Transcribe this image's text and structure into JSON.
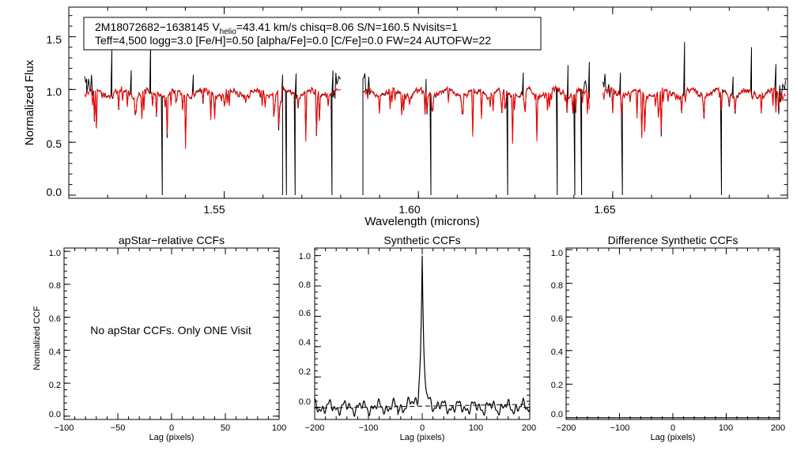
{
  "figure": {
    "info_box": {
      "line1_star": "2M18072682−1638145",
      "line1_v": "V",
      "line1_v_sub": "helio",
      "line1_rest": "=43.41 km/s  chisq=8.06  S/N=160.5  Nvisits=1",
      "line2": "Teff=4,500 logg=3.0 [Fe/H]=0.50 [alpha/Fe]=0.0 [C/Fe]=0.0 FW=24 AUTOFW=22"
    },
    "no_ccf_message": "No apStar CCFs.  Only ONE Visit"
  },
  "chart_data": [
    {
      "type": "line",
      "title": "",
      "xlabel": "Wavelength (microns)",
      "ylabel": "Normalized Flux",
      "xlim": [
        1.51,
        1.695
      ],
      "ylim": [
        -0.03,
        1.78
      ],
      "xticks": [
        1.55,
        1.6,
        1.65
      ],
      "xtick_labels": [
        "1.55",
        "1.60",
        "1.65"
      ],
      "yticks": [
        0.0,
        0.5,
        1.0,
        1.5
      ],
      "ytick_labels": [
        "0.0",
        "0.5",
        "1.0",
        "1.5"
      ],
      "chips": [
        [
          1.5141,
          1.58
        ],
        [
          1.5857,
          1.644
        ],
        [
          1.6475,
          1.6945
        ]
      ],
      "series": [
        {
          "name": "observed spectrum",
          "color": "#000000"
        },
        {
          "name": "synthetic model",
          "color": "#ff0000"
        }
      ],
      "spikes_up": [
        [
          1.5145,
          1.1
        ],
        [
          1.521,
          1.38
        ],
        [
          1.526,
          1.18
        ],
        [
          1.531,
          1.44
        ],
        [
          1.542,
          1.14
        ],
        [
          1.565,
          1.14
        ],
        [
          1.5685,
          1.15
        ],
        [
          1.578,
          1.18
        ],
        [
          1.602,
          1.1
        ],
        [
          1.627,
          1.16
        ],
        [
          1.6385,
          1.23
        ],
        [
          1.644,
          1.26
        ],
        [
          1.652,
          1.16
        ],
        [
          1.6684,
          1.45
        ],
        [
          1.681,
          1.12
        ],
        [
          1.6858,
          1.4
        ],
        [
          1.692,
          1.24
        ]
      ],
      "dips_zero": [
        1.534,
        1.565,
        1.566,
        1.5682,
        1.5778,
        1.5857,
        1.6033,
        1.623,
        1.6357,
        1.6403,
        1.642,
        1.6526,
        1.678
      ]
    },
    {
      "type": "line",
      "title": "apStar−relative CCFs",
      "xlabel": "Lag (pixels)",
      "ylabel": "Normalized CCF",
      "xlim": [
        -100,
        100
      ],
      "ylim": [
        -0.02,
        1.02
      ],
      "xticks": [
        -100,
        -50,
        0,
        50,
        100
      ],
      "xtick_labels": [
        "−100",
        "−50",
        "0",
        "50",
        "100"
      ],
      "yticks": [
        0.0,
        0.2,
        0.4,
        0.6,
        0.8,
        1.0
      ],
      "ytick_labels": [
        "0.0",
        "0.2",
        "0.4",
        "0.6",
        "0.8",
        "1.0"
      ],
      "series": []
    },
    {
      "type": "line",
      "title": "Synthetic CCFs",
      "xlabel": "Lag (pixels)",
      "ylabel": "",
      "xlim": [
        -200,
        200
      ],
      "ylim": [
        -0.08,
        1.05
      ],
      "xticks": [
        -200,
        -100,
        0,
        100,
        200
      ],
      "xtick_labels": [
        "−200",
        "−100",
        "0",
        "100",
        "200"
      ],
      "yticks": [
        0.0,
        0.2,
        0.4,
        0.6,
        0.8,
        1.0
      ],
      "ytick_labels": [
        "0.0",
        "0.2",
        "0.4",
        "0.6",
        "0.8",
        "1.0"
      ],
      "series": [
        {
          "name": "CCF",
          "style": "solid",
          "peak_lag": 0,
          "peak_value": 1.0
        },
        {
          "name": "fit baseline",
          "style": "dashed",
          "values_at": [
            [
              -200,
              -0.005
            ],
            [
              200,
              0.02
            ]
          ]
        }
      ]
    },
    {
      "type": "line",
      "title": "Difference Synthetic CCFs",
      "xlabel": "Lag (pixels)",
      "ylabel": "",
      "xlim": [
        -200,
        200
      ],
      "ylim": [
        -0.01,
        1.01
      ],
      "xticks": [
        -200,
        -100,
        0,
        100,
        200
      ],
      "xtick_labels": [
        "−200",
        "−100",
        "0",
        "100",
        "200"
      ],
      "yticks": [
        0.0,
        0.2,
        0.4,
        0.6,
        0.8,
        1.0
      ],
      "ytick_labels": [
        "0.0",
        "0.2",
        "0.4",
        "0.6",
        "0.8",
        "1.0"
      ],
      "series": [
        {
          "name": "difference",
          "values_at": [
            [
              -200,
              0.0
            ],
            [
              200,
              0.0
            ]
          ]
        }
      ]
    }
  ]
}
